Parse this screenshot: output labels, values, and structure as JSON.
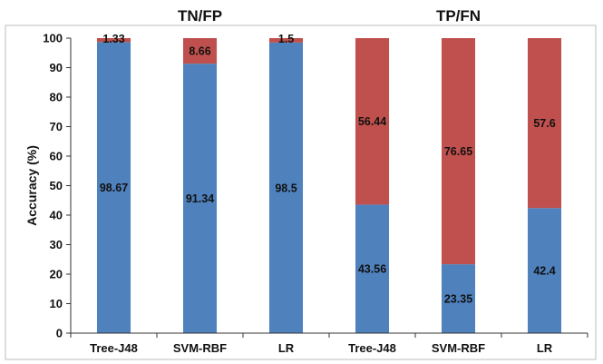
{
  "chart_data": {
    "type": "bar",
    "stacked": true,
    "groups": [
      {
        "title": "TN/FP",
        "categories": [
          "Tree-J48",
          "SVM-RBF",
          "LR"
        ]
      },
      {
        "title": "TP/FN",
        "categories": [
          "Tree-J48",
          "SVM-RBF",
          "LR"
        ]
      }
    ],
    "categories": [
      "Tree-J48",
      "SVM-RBF",
      "LR",
      "Tree-J48",
      "SVM-RBF",
      "LR"
    ],
    "series": [
      {
        "color": "#4f81bd",
        "values": [
          98.67,
          91.34,
          98.5,
          43.56,
          23.35,
          42.4
        ],
        "labels": [
          "98.67",
          "91.34",
          "98.5",
          "43.56",
          "23.35",
          "42.4"
        ]
      },
      {
        "color": "#c0504d",
        "values": [
          1.33,
          8.66,
          1.5,
          56.44,
          76.65,
          57.6
        ],
        "labels": [
          "1.33",
          "8.66",
          "1.5",
          "56.44",
          "76.65",
          "57.6"
        ]
      }
    ],
    "ylabel": "Accuracy (%)",
    "ylim": [
      0,
      100
    ],
    "yticks": [
      0,
      10,
      20,
      30,
      40,
      50,
      60,
      70,
      80,
      90,
      100
    ],
    "ytick_labels": [
      "0",
      "10",
      "20",
      "30",
      "40",
      "50",
      "60",
      "70",
      "80",
      "90",
      "100"
    ],
    "grid": false,
    "legend": "none"
  }
}
